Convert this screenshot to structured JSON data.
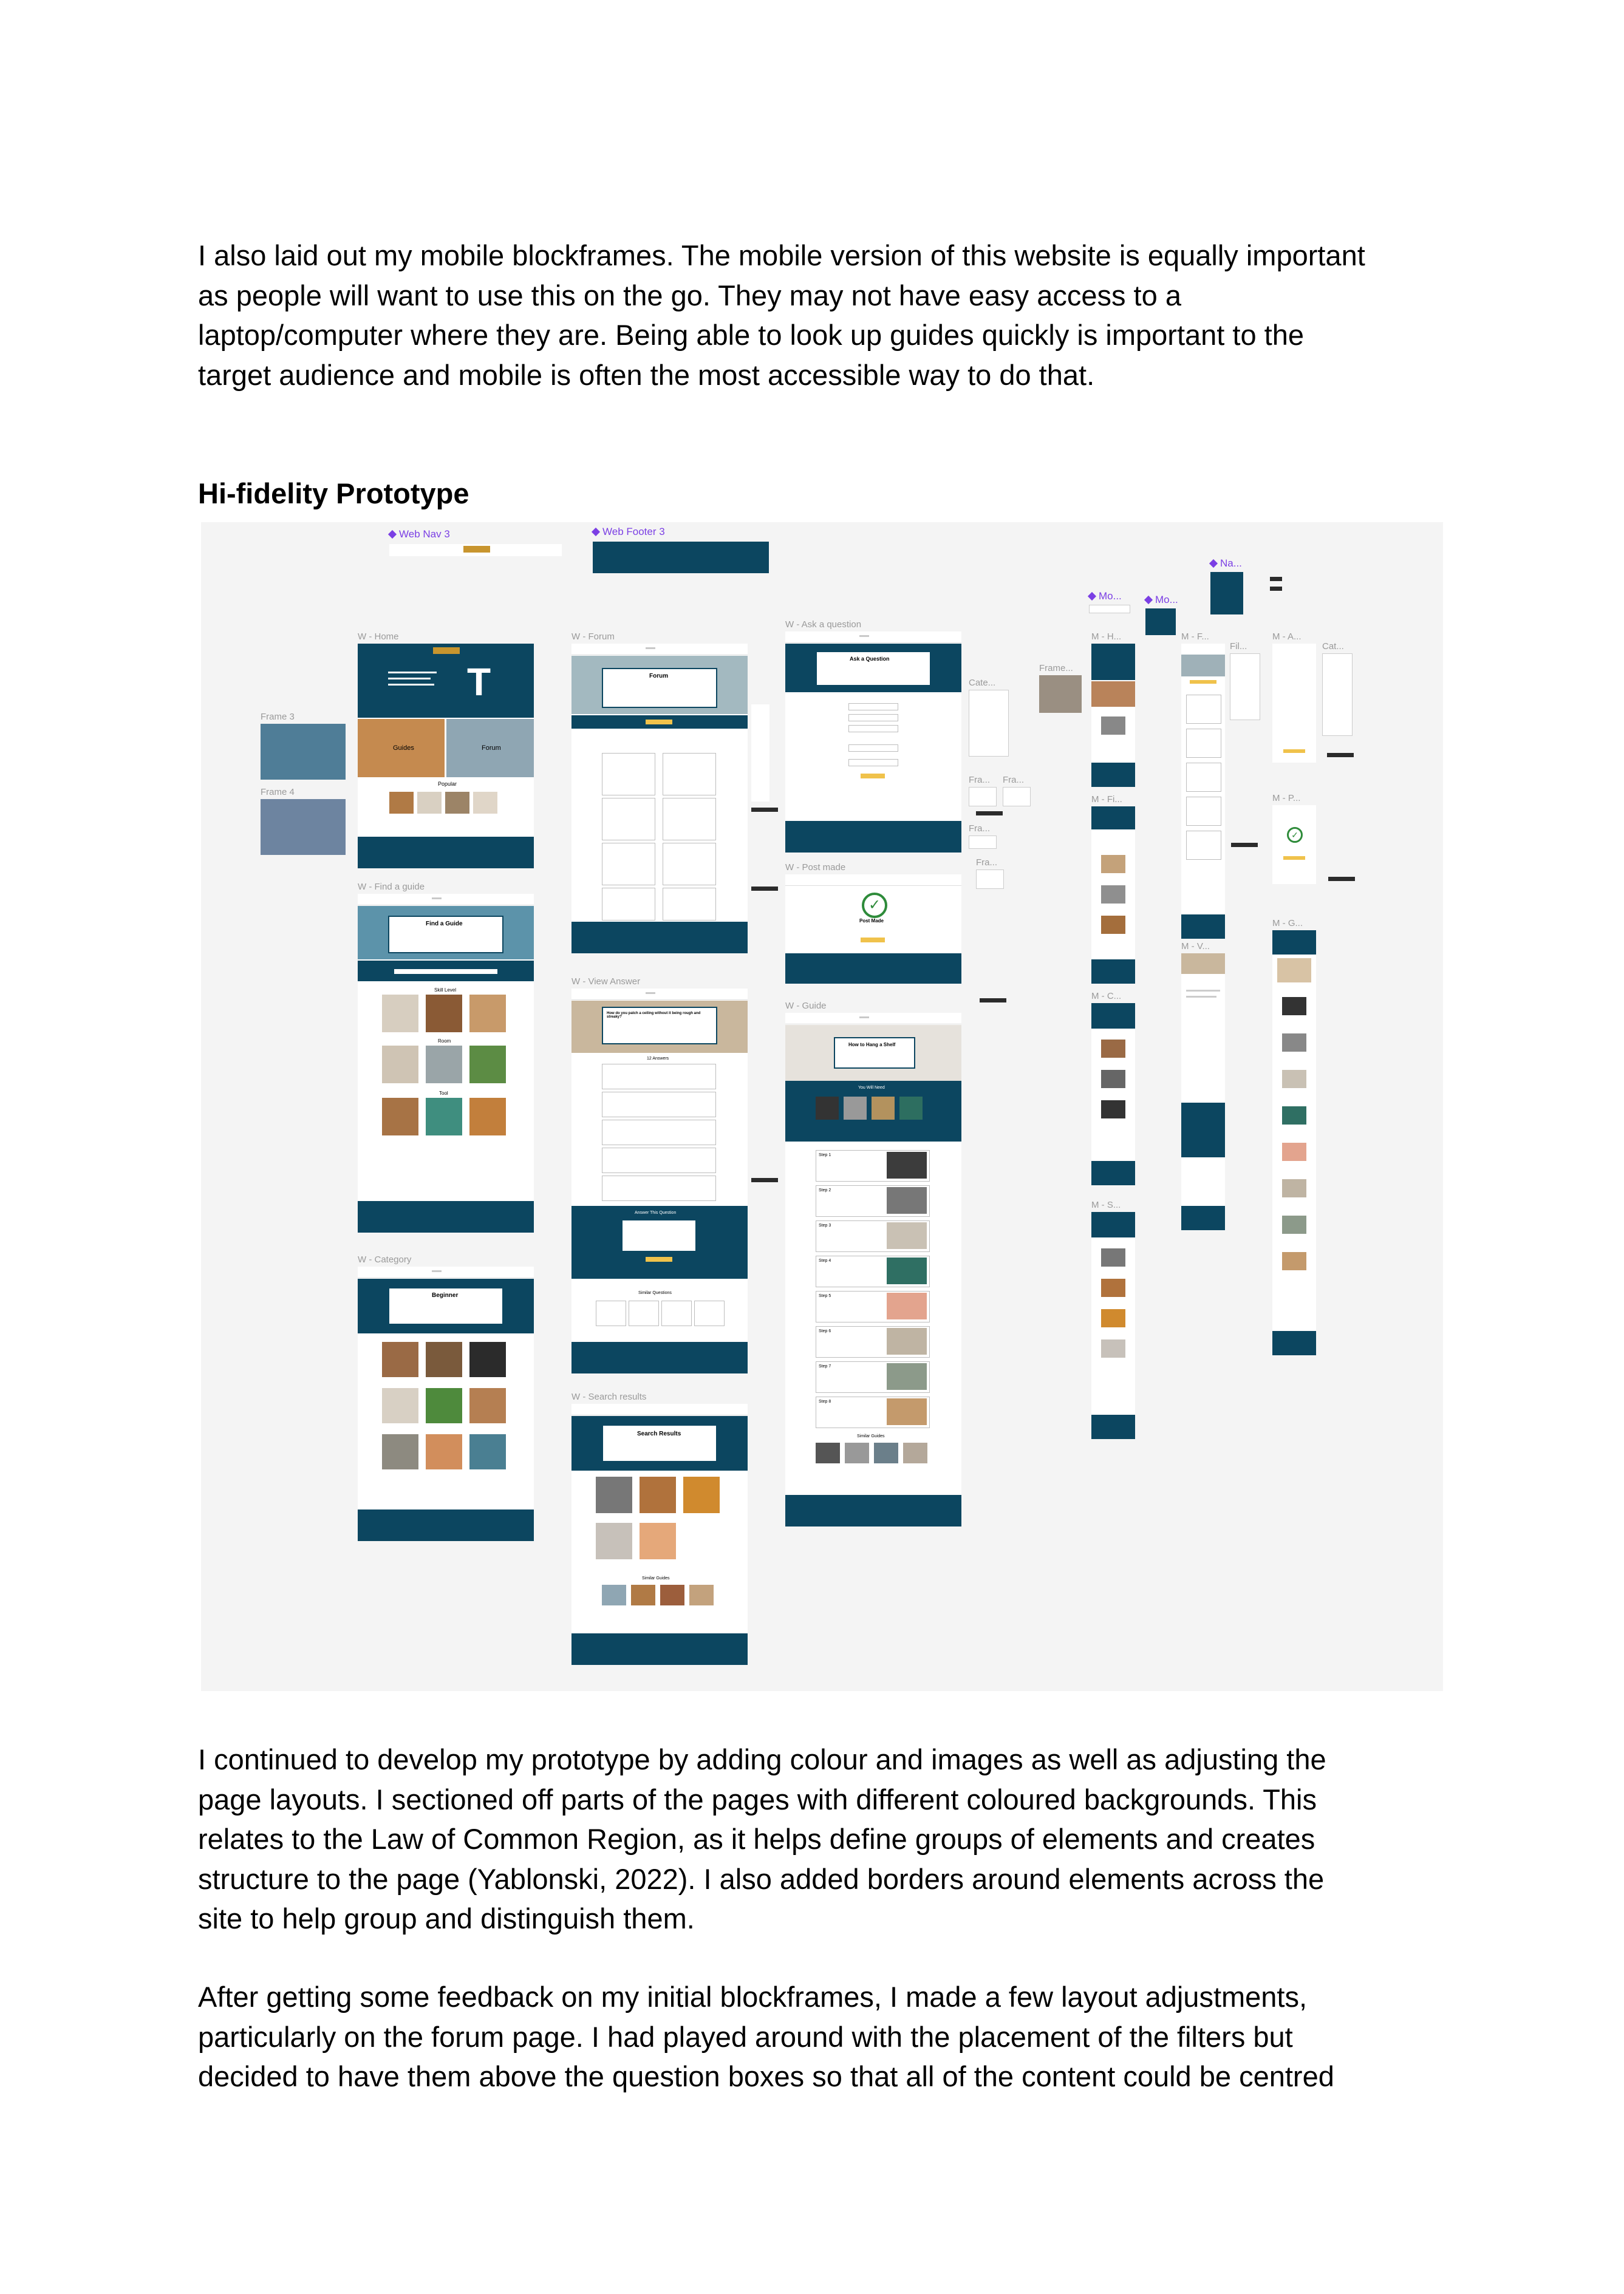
{
  "intro_paragraph": [
    "I also laid out my mobile blockframes. The mobile version of this website is equally important",
    "as people will want to use this on the go. They may not have easy access to a",
    "laptop/computer where they are. Being able to look up guides quickly is important to the",
    "target audience and mobile is often the most accessible way to do that."
  ],
  "section_heading": "Hi-fidelity Prototype",
  "figma": {
    "component_labels": {
      "web_nav": "Web Nav 3",
      "web_footer": "Web Footer 3",
      "na": "Na...",
      "mo1": "Mo...",
      "mo2": "Mo..."
    },
    "frame_labels": {
      "home": "W - Home",
      "frame3": "Frame 3",
      "frame4": "Frame 4",
      "find_guide": "W - Find a guide",
      "category": "W - Category",
      "forum": "W - Forum",
      "view_answer": "W - View Answer",
      "search_results": "W - Search results",
      "ask_question": "W - Ask a question",
      "post_made": "W - Post made",
      "guide": "W - Guide",
      "cate": "Cate...",
      "fra1": "Fra...",
      "fra2": "Fra...",
      "fra3": "Fra...",
      "fra4": "Fra...",
      "frame_m": "Frame...",
      "m_h": "M - H...",
      "m_fi": "M - Fi...",
      "m_c": "M - C...",
      "m_s": "M - S...",
      "m_f": "M - F...",
      "fil": "Fil...",
      "m_v": "M - V...",
      "m_a": "M - A...",
      "cat": "Cat...",
      "m_p": "M - P...",
      "m_g": "M - G..."
    },
    "screen_text": {
      "logo": "BUILD IT",
      "home_guides": "Guides",
      "home_forum": "Forum",
      "home_popular": "Popular",
      "find_guide_title": "Find a Guide",
      "skill_level": "Skill Level",
      "room": "Room",
      "tool": "Tool",
      "category_title": "Beginner",
      "forum_title": "Forum",
      "view_answer_title": "How do you patch a ceiling without it being rough and streaky?",
      "answers_count": "12 Answers",
      "answer_question": "Answer This Question",
      "similar_questions": "Similar Questions",
      "search_results_title": "Search Results",
      "similar_guides": "Similar Guides",
      "ask_question_title": "Ask a Question",
      "post_made_title": "Post Made",
      "guide_title": "How to Hang a Shelf",
      "diy_needs": "You Will Need",
      "step_labels": [
        "Step 1",
        "Step 2",
        "Step 3",
        "Step 4",
        "Step 5",
        "Step 6",
        "Step 7",
        "Step 8"
      ]
    }
  },
  "body_paragraph_1": [
    "I continued to develop my prototype by adding colour and images as well as adjusting the",
    "page layouts. I sectioned off parts of the pages with different coloured backgrounds. This",
    "relates to the Law of Common Region, as it helps define groups of elements and creates",
    "structure to the page (Yablonski, 2022). I also added borders around elements across the",
    "site to help group and distinguish them."
  ],
  "body_paragraph_2": [
    "After getting some feedback on my initial blockframes, I made a few layout adjustments,",
    "particularly on the forum page. I had played around with the placement of the filters but",
    "decided to have them above the question boxes so that all of the content could be centred"
  ],
  "colors": {
    "brand_dark": "#0c4660",
    "accent_yellow": "#f0c24b",
    "component_purple": "#7b3fe4",
    "canvas_bg": "#f4f4f4"
  }
}
